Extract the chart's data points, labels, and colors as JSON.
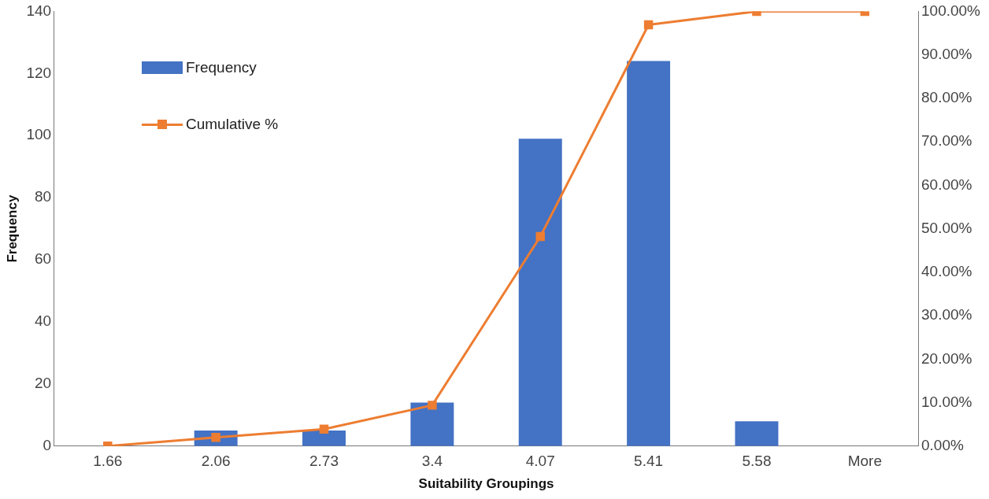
{
  "chart_data": {
    "type": "bar",
    "xlabel": "Suitability Groupings",
    "ylabel": "Frequency",
    "categories": [
      "1.66",
      "2.06",
      "2.73",
      "3.4",
      "4.07",
      "5.41",
      "5.58",
      "More"
    ],
    "series": [
      {
        "name": "Frequency",
        "color": "#4472c4",
        "values": [
          0,
          5,
          5,
          14,
          99,
          124,
          8,
          0
        ]
      },
      {
        "name": "Cumulative %",
        "type": "line",
        "axis": "y2",
        "color": "#ed7d31",
        "marker": "square",
        "values": [
          0,
          2,
          3.9,
          9.4,
          48.2,
          96.9,
          100,
          100
        ]
      }
    ],
    "ylim": [
      0,
      140
    ],
    "yticks": [
      0,
      20,
      40,
      60,
      80,
      100,
      120,
      140
    ],
    "y2lim": [
      0,
      100
    ],
    "y2ticks": [
      {
        "value": 0,
        "label": "0.00%"
      },
      {
        "value": 10,
        "label": "10.00%"
      },
      {
        "value": 20,
        "label": "20.00%"
      },
      {
        "value": 30,
        "label": "30.00%"
      },
      {
        "value": 40,
        "label": "40.00%"
      },
      {
        "value": 50,
        "label": "50.00%"
      },
      {
        "value": 60,
        "label": "60.00%"
      },
      {
        "value": 70,
        "label": "70.00%"
      },
      {
        "value": 80,
        "label": "80.00%"
      },
      {
        "value": 90,
        "label": "90.00%"
      },
      {
        "value": 100,
        "label": "100.00%"
      }
    ],
    "grid": false,
    "legend": "top left"
  }
}
